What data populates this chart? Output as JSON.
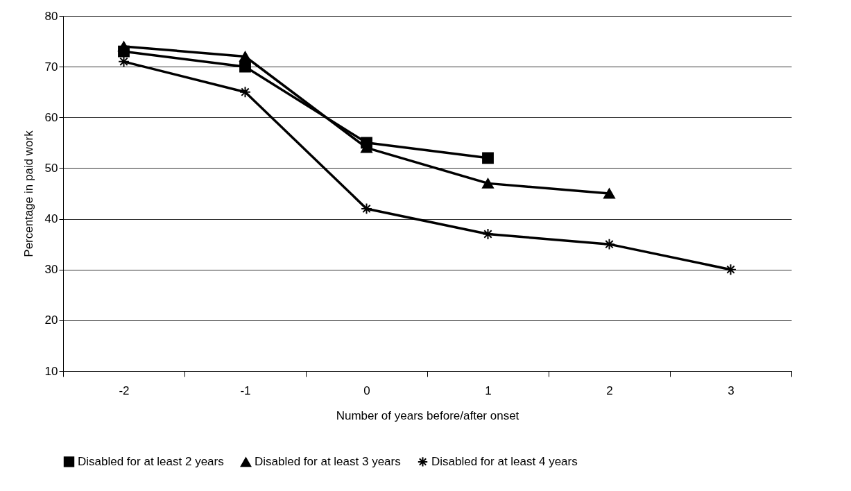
{
  "chart_data": {
    "type": "line",
    "xlabel": "Number of years before/after onset",
    "ylabel": "Percentage in paid work",
    "categories": [
      "-2",
      "-1",
      "0",
      "1",
      "2",
      "3"
    ],
    "series": [
      {
        "name": "Disabled for at least 2 years",
        "color": "#000000",
        "marker": "square",
        "values": [
          73,
          70,
          55,
          52,
          null,
          null
        ]
      },
      {
        "name": "Disabled for at least 3 years",
        "color": "#000000",
        "marker": "triangle",
        "values": [
          74,
          72,
          54,
          47,
          45,
          null
        ]
      },
      {
        "name": "Disabled for at least 4 years",
        "color": "#000000",
        "marker": "cross",
        "values": [
          71,
          65,
          42,
          37,
          35,
          30
        ]
      }
    ],
    "ylim": [
      10,
      80
    ],
    "yticks": [
      10,
      20,
      30,
      40,
      50,
      60,
      70,
      80
    ],
    "grid": "y",
    "legend": "bottom",
    "line_style": "solid"
  }
}
